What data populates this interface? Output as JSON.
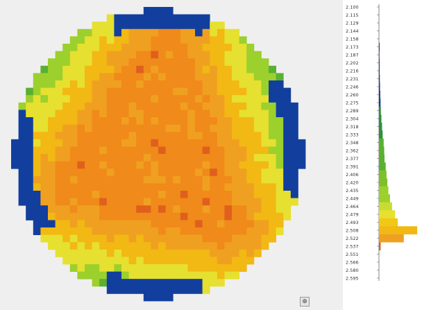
{
  "chart_data": [
    {
      "type": "heatmap",
      "colorscale": [
        "#123f9e",
        "#2f8f3c",
        "#5ab030",
        "#9cd02c",
        "#e6e030",
        "#f2b814",
        "#f0a020",
        "#f08a1a",
        "#e05f1e"
      ],
      "background_color": "#efefef",
      "grid_cells": 40
    },
    {
      "type": "bar",
      "orientation": "horizontal",
      "categories": [
        "2.100",
        "2.115",
        "2.129",
        "2.144",
        "2.158",
        "2.173",
        "2.187",
        "2.202",
        "2.216",
        "2.231",
        "2.246",
        "2.260",
        "2.275",
        "2.289",
        "2.304",
        "2.318",
        "2.333",
        "2.348",
        "2.362",
        "2.377",
        "2.391",
        "2.406",
        "2.420",
        "2.435",
        "2.449",
        "2.464",
        "2.479",
        "2.493",
        "2.508",
        "2.522",
        "2.537",
        "2.551",
        "2.566",
        "2.580",
        "2.595"
      ],
      "values": [
        0,
        0,
        0,
        0,
        0,
        1,
        0.8,
        1,
        1,
        1.3,
        1.6,
        2,
        2.4,
        2.8,
        3.6,
        4.6,
        5.5,
        7,
        7.8,
        8.3,
        10,
        11.2,
        12.5,
        14,
        16.5,
        19.5,
        24,
        28,
        57,
        37,
        2.5,
        0,
        0,
        0,
        0
      ],
      "bar_colors": [
        "#123f9e",
        "#123f9e",
        "#123f9e",
        "#123f9e",
        "#123f9e",
        "#123f9e",
        "#123f9e",
        "#123f9e",
        "#123f9e",
        "#123f9e",
        "#123f9e",
        "#123f9e",
        "#123f9e",
        "#2f8f3c",
        "#2f8f3c",
        "#2f8f3c",
        "#2f8f3c",
        "#5ab030",
        "#5ab030",
        "#5ab030",
        "#5ab030",
        "#7ec02c",
        "#7ec02c",
        "#9cd02c",
        "#9cd02c",
        "#c8dc30",
        "#e6e030",
        "#f2c814",
        "#f2b814",
        "#f0a020",
        "#e05f1e",
        "#e05f1e",
        "#e05f1e",
        "#e05f1e",
        "#e05f1e"
      ],
      "xlim": [
        0,
        60
      ]
    }
  ],
  "controls": {
    "zoom_label": "⊕"
  }
}
